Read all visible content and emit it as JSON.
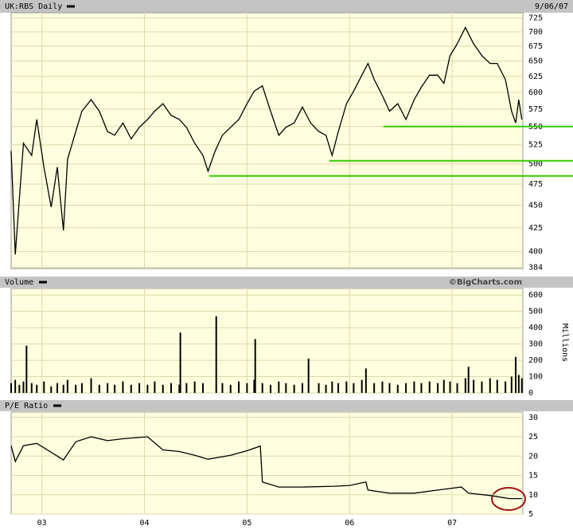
{
  "chart_data": [
    {
      "type": "line",
      "title": "UK:RBS Daily",
      "subtitle": "9/06/07",
      "color": "#000000",
      "log_scale": true,
      "xlim": [
        2002.7,
        2007.69
      ],
      "ylim": [
        383,
        735
      ],
      "yticks": [
        384,
        400,
        425,
        450,
        475,
        500,
        525,
        550,
        575,
        600,
        625,
        650,
        675,
        700,
        725
      ],
      "x": [
        2002.7,
        2002.74,
        2002.78,
        2002.82,
        2002.9,
        2002.95,
        2003.02,
        2003.09,
        2003.15,
        2003.21,
        2003.25,
        2003.33,
        2003.39,
        2003.48,
        2003.56,
        2003.64,
        2003.71,
        2003.79,
        2003.87,
        2003.95,
        2004.03,
        2004.1,
        2004.18,
        2004.26,
        2004.34,
        2004.41,
        2004.49,
        2004.57,
        2004.62,
        2004.69,
        2004.76,
        2004.84,
        2004.92,
        2005.0,
        2005.07,
        2005.15,
        2005.23,
        2005.31,
        2005.38,
        2005.46,
        2005.54,
        2005.62,
        2005.7,
        2005.77,
        2005.83,
        2005.89,
        2005.97,
        2006.04,
        2006.12,
        2006.18,
        2006.24,
        2006.32,
        2006.39,
        2006.47,
        2006.55,
        2006.63,
        2006.7,
        2006.78,
        2006.86,
        2006.92,
        2006.98,
        2007.05,
        2007.13,
        2007.21,
        2007.29,
        2007.37,
        2007.44,
        2007.52,
        2007.58,
        2007.62,
        2007.65,
        2007.68
      ],
      "values": [
        517,
        397,
        457,
        527,
        511,
        560,
        496,
        448,
        496,
        422,
        506,
        543,
        572,
        589,
        572,
        543,
        538,
        555,
        533,
        549,
        560,
        572,
        583,
        566,
        560,
        549,
        527,
        511,
        491,
        517,
        538,
        549,
        560,
        583,
        602,
        610,
        572,
        538,
        549,
        555,
        578,
        555,
        543,
        538,
        511,
        543,
        583,
        602,
        627,
        646,
        620,
        595,
        572,
        583,
        560,
        589,
        608,
        627,
        627,
        614,
        659,
        679,
        708,
        679,
        659,
        646,
        646,
        620,
        572,
        555,
        589,
        560
      ],
      "support_color": "#33cc00",
      "support_lines": [
        {
          "value": 550,
          "x_start": 2006.33
        },
        {
          "value": 504,
          "x_start": 2005.8
        },
        {
          "value": 485,
          "x_start": 2004.63
        }
      ]
    },
    {
      "type": "bar",
      "title": "Volume",
      "credit": "©BigCharts.com",
      "ylabel": "Millions",
      "color": "#000000",
      "xlim": [
        2002.7,
        2007.69
      ],
      "ylim": [
        0,
        640
      ],
      "yticks": [
        0,
        100,
        200,
        300,
        400,
        500,
        600
      ],
      "x": [
        2002.7,
        2002.74,
        2002.78,
        2002.82,
        2002.85,
        2002.9,
        2002.95,
        2003.02,
        2003.09,
        2003.15,
        2003.21,
        2003.25,
        2003.33,
        2003.39,
        2003.48,
        2003.56,
        2003.64,
        2003.71,
        2003.79,
        2003.87,
        2003.95,
        2004.03,
        2004.1,
        2004.18,
        2004.26,
        2004.34,
        2004.35,
        2004.41,
        2004.49,
        2004.57,
        2004.7,
        2004.76,
        2004.84,
        2004.92,
        2005.0,
        2005.07,
        2005.08,
        2005.15,
        2005.23,
        2005.31,
        2005.38,
        2005.46,
        2005.54,
        2005.6,
        2005.7,
        2005.77,
        2005.83,
        2005.89,
        2005.97,
        2006.04,
        2006.12,
        2006.16,
        2006.24,
        2006.32,
        2006.39,
        2006.47,
        2006.55,
        2006.63,
        2006.7,
        2006.78,
        2006.86,
        2006.92,
        2006.98,
        2007.05,
        2007.13,
        2007.16,
        2007.21,
        2007.29,
        2007.37,
        2007.44,
        2007.52,
        2007.58,
        2007.62,
        2007.65,
        2007.68
      ],
      "values": [
        60,
        80,
        50,
        70,
        290,
        60,
        50,
        70,
        40,
        60,
        50,
        80,
        50,
        60,
        90,
        50,
        60,
        50,
        70,
        50,
        60,
        50,
        70,
        50,
        60,
        50,
        370,
        60,
        70,
        60,
        470,
        60,
        50,
        70,
        60,
        80,
        330,
        60,
        50,
        70,
        60,
        50,
        60,
        210,
        60,
        50,
        70,
        60,
        70,
        60,
        80,
        150,
        60,
        70,
        60,
        50,
        60,
        70,
        60,
        70,
        60,
        80,
        70,
        60,
        90,
        160,
        80,
        70,
        90,
        80,
        70,
        100,
        220,
        110,
        90
      ]
    },
    {
      "type": "line",
      "title": "P/E Ratio",
      "color": "#000000",
      "xlim": [
        2002.7,
        2007.69
      ],
      "ylim": [
        5,
        31.4
      ],
      "yticks": [
        5,
        10,
        15,
        20,
        25,
        30
      ],
      "xticks": [
        {
          "value": 2003,
          "label": "03"
        },
        {
          "value": 2004,
          "label": "04"
        },
        {
          "value": 2005,
          "label": "05"
        },
        {
          "value": 2006,
          "label": "06"
        },
        {
          "value": 2007,
          "label": "07"
        }
      ],
      "x": [
        2002.7,
        2002.74,
        2002.82,
        2002.95,
        2003.09,
        2003.21,
        2003.33,
        2003.48,
        2003.64,
        2003.79,
        2004.03,
        2004.18,
        2004.34,
        2004.49,
        2004.62,
        2004.84,
        2005.0,
        2005.13,
        2005.15,
        2005.31,
        2005.54,
        2005.85,
        2006.0,
        2006.16,
        2006.18,
        2006.39,
        2006.63,
        2006.86,
        2007.09,
        2007.16,
        2007.37,
        2007.56,
        2007.68
      ],
      "values": [
        22.7,
        18.6,
        22.7,
        23.3,
        21,
        19,
        23.7,
        25,
        24,
        24.5,
        25,
        21.6,
        21.2,
        20.2,
        19.2,
        20.2,
        21.4,
        22.6,
        13.3,
        12,
        12,
        12.2,
        12.4,
        13.3,
        11.2,
        10.4,
        10.4,
        11.2,
        12,
        10.4,
        9.8,
        9,
        9
      ]
    }
  ]
}
